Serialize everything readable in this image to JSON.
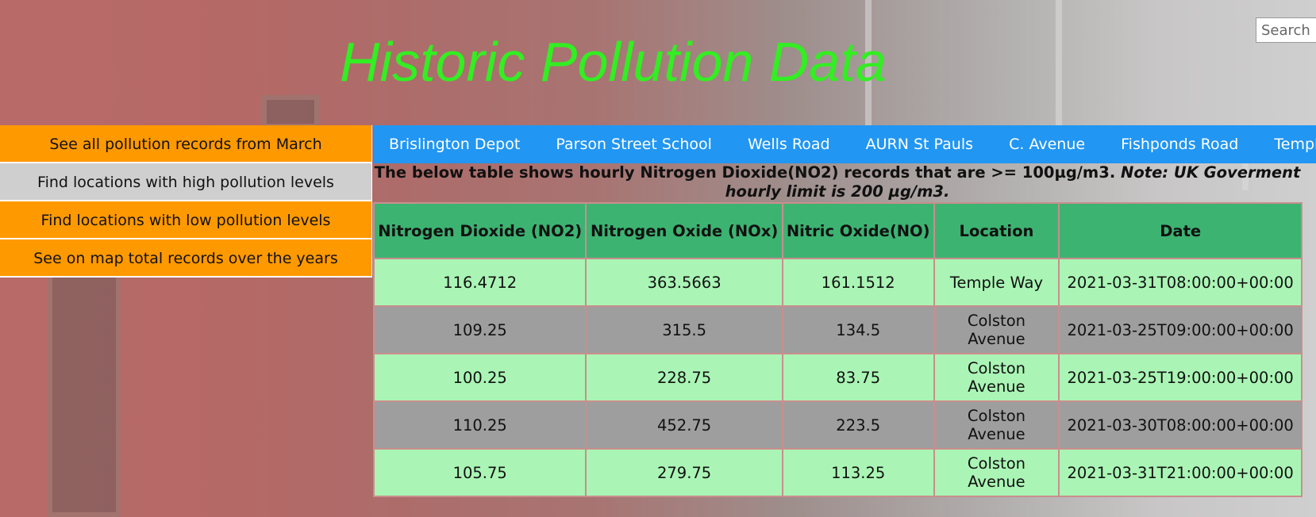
{
  "header": {
    "title": "Historic Pollution Data",
    "search_placeholder": "Search"
  },
  "sidebar": {
    "items": [
      {
        "label": "See all pollution records from March",
        "active": false
      },
      {
        "label": "Find locations with high pollution levels",
        "active": true
      },
      {
        "label": "Find locations with low pollution levels",
        "active": false
      },
      {
        "label": "See on map total records over the years",
        "active": false
      }
    ]
  },
  "topnav": {
    "links": [
      "Brislington Depot",
      "Parson Street School",
      "Wells Road",
      "AURN St Pauls",
      "C. Avenue",
      "Fishponds Road",
      "Temple W"
    ]
  },
  "note": {
    "text": "The below table shows hourly Nitrogen Dioxide(NO2) records that are >= 100µg/m3.",
    "emphasis": "Note: UK Goverment hourly limit is 200 µg/m3."
  },
  "table": {
    "headers": [
      "Nitrogen Dioxide (NO2)",
      "Nitrogen Oxide (NOx)",
      "Nitric Oxide(NO)",
      "Location",
      "Date"
    ],
    "rows": [
      [
        "116.4712",
        "363.5663",
        "161.1512",
        "Temple Way",
        "2021-03-31T08:00:00+00:00"
      ],
      [
        "109.25",
        "315.5",
        "134.5",
        "Colston Avenue",
        "2021-03-25T09:00:00+00:00"
      ],
      [
        "100.25",
        "228.75",
        "83.75",
        "Colston Avenue",
        "2021-03-25T19:00:00+00:00"
      ],
      [
        "110.25",
        "452.75",
        "223.5",
        "Colston Avenue",
        "2021-03-30T08:00:00+00:00"
      ],
      [
        "105.75",
        "279.75",
        "113.25",
        "Colston Avenue",
        "2021-03-31T21:00:00+00:00"
      ]
    ]
  },
  "colors": {
    "title": "#33ee22",
    "sidebar_item": "#ff9900",
    "sidebar_active": "#cfcfcf",
    "nav": "#2196f3",
    "table_header": "#3cb371",
    "row_light": "#aaf5b5",
    "row_grey": "#9e9e9e"
  }
}
